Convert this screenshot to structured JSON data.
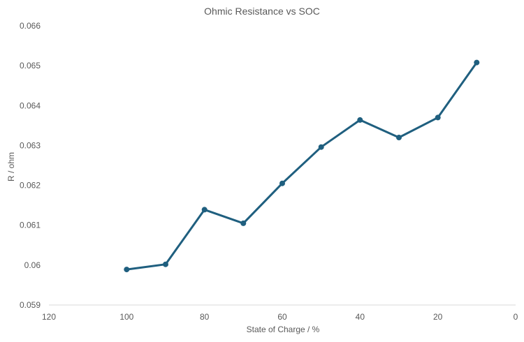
{
  "chart_data": {
    "type": "line",
    "title": "Ohmic Resistance vs SOC",
    "xlabel": "State of Charge  / %",
    "ylabel": "R / ohm",
    "xlim": [
      120,
      0
    ],
    "ylim": [
      0.059,
      0.066
    ],
    "x_reversed": true,
    "x_ticks": [
      120,
      100,
      80,
      60,
      40,
      20,
      0
    ],
    "y_ticks": [
      0.059,
      0.06,
      0.061,
      0.062,
      0.063,
      0.064,
      0.065,
      0.066
    ],
    "x_tick_labels": [
      "120",
      "100",
      "80",
      "60",
      "40",
      "20",
      "0"
    ],
    "y_tick_labels": [
      "0.059",
      "0.06",
      "0.061",
      "0.062",
      "0.063",
      "0.064",
      "0.065",
      "0.066"
    ],
    "grid": false,
    "legend": "none",
    "line_color": "#1f5f7f",
    "series": [
      {
        "x": [
          100,
          90,
          80,
          70,
          60,
          50,
          40,
          30,
          20,
          10
        ],
        "y": [
          0.05989,
          0.06002,
          0.06139,
          0.06105,
          0.06205,
          0.06296,
          0.06364,
          0.0632,
          0.0637,
          0.06508
        ]
      }
    ]
  }
}
